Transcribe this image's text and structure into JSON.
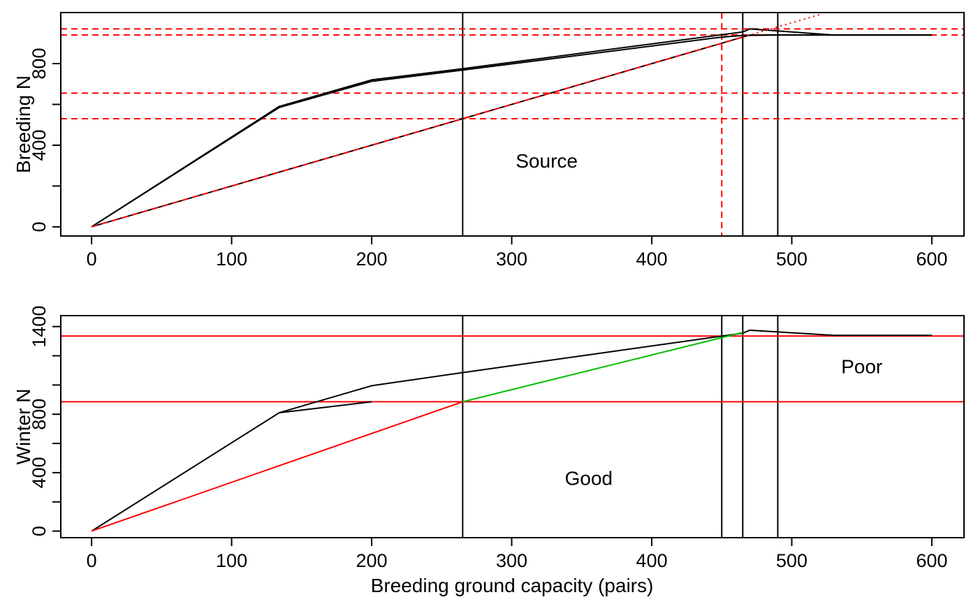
{
  "xlabel": "Breeding ground capacity (pairs)",
  "chart_data": [
    {
      "type": "line",
      "ylabel": "Breeding N",
      "xlim": [
        -22,
        623
      ],
      "ylim": [
        -45,
        1050
      ],
      "xticks": [
        0,
        100,
        200,
        300,
        400,
        500,
        600
      ],
      "yticks": [
        0,
        400,
        800
      ],
      "yminor": [
        200,
        600
      ],
      "annotations": [
        {
          "text": "Source",
          "x": 325,
          "y": 290
        }
      ],
      "series": [
        {
          "color": "#000000",
          "style": "solid",
          "x": [
            0,
            134,
            200,
            265,
            465,
            470,
            530,
            600
          ],
          "y": [
            0,
            590,
            720,
            775,
            955,
            970,
            940,
            940
          ]
        },
        {
          "color": "#000000",
          "style": "solid",
          "x": [
            0,
            134,
            200,
            265,
            450,
            465,
            490,
            600
          ],
          "y": [
            0,
            585,
            713,
            768,
            930,
            938,
            940,
            940
          ]
        },
        {
          "color": "#000000",
          "style": "solid",
          "x": [
            0,
            265,
            465,
            470,
            600
          ],
          "y": [
            0,
            530,
            930,
            940,
            940
          ]
        },
        {
          "color": "#ff0000",
          "style": "dashed",
          "x": [
            0,
            465
          ],
          "y": [
            0,
            930
          ]
        },
        {
          "color": "#ff0000",
          "style": "dotted",
          "x": [
            465,
            520
          ],
          "y": [
            930,
            1040
          ]
        }
      ],
      "vlines": [
        {
          "x": 265,
          "color": "#000000",
          "style": "solid"
        },
        {
          "x": 465,
          "color": "#000000",
          "style": "solid"
        },
        {
          "x": 490,
          "color": "#000000",
          "style": "solid"
        },
        {
          "x": 450,
          "color": "#ff0000",
          "style": "dashed"
        }
      ],
      "hlines": [
        {
          "y": 970,
          "color": "#ff0000",
          "style": "dashed"
        },
        {
          "y": 940,
          "color": "#ff0000",
          "style": "dashed"
        },
        {
          "y": 655,
          "color": "#ff0000",
          "style": "dashed"
        },
        {
          "y": 530,
          "color": "#ff0000",
          "style": "dashed"
        }
      ]
    },
    {
      "type": "line",
      "ylabel": "Winter N",
      "xlim": [
        -22,
        623
      ],
      "ylim": [
        -45,
        1475
      ],
      "xticks": [
        0,
        100,
        200,
        300,
        400,
        500,
        600
      ],
      "yticks": [
        0,
        400,
        800,
        1400
      ],
      "yminor": [
        200,
        600,
        1000,
        1200
      ],
      "annotations": [
        {
          "text": "Good",
          "x": 355,
          "y": 315
        },
        {
          "text": "Poor",
          "x": 550,
          "y": 1080
        }
      ],
      "series": [
        {
          "color": "#000000",
          "style": "solid",
          "x": [
            0,
            134,
            200,
            265,
            465,
            470,
            530,
            600
          ],
          "y": [
            0,
            810,
            995,
            1085,
            1355,
            1375,
            1340,
            1340
          ]
        },
        {
          "color": "#000000",
          "style": "solid",
          "x": [
            134,
            200
          ],
          "y": [
            810,
            885
          ]
        },
        {
          "color": "#ff0000",
          "style": "solid",
          "x": [
            0,
            265
          ],
          "y": [
            0,
            885
          ]
        },
        {
          "color": "#00c000",
          "style": "solid",
          "x": [
            265,
            465
          ],
          "y": [
            885,
            1360
          ]
        }
      ],
      "vlines": [
        {
          "x": 265,
          "color": "#000000",
          "style": "solid"
        },
        {
          "x": 450,
          "color": "#000000",
          "style": "solid"
        },
        {
          "x": 465,
          "color": "#000000",
          "style": "solid"
        },
        {
          "x": 490,
          "color": "#000000",
          "style": "solid"
        }
      ],
      "hlines": [
        {
          "y": 1335,
          "color": "#ff0000",
          "style": "solid"
        },
        {
          "y": 885,
          "color": "#ff0000",
          "style": "solid"
        }
      ]
    }
  ]
}
